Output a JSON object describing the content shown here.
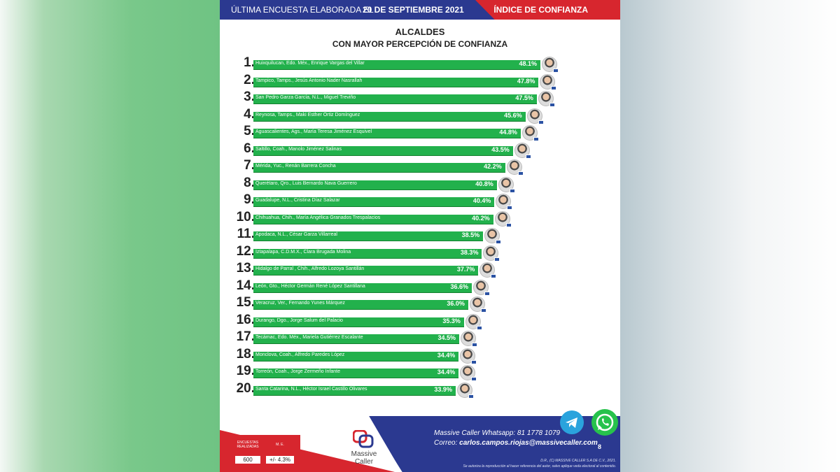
{
  "header": {
    "survey_label": "ÚLTIMA ENCUESTA ELABORADA EL",
    "survey_date": "20  DE SEPTIEMBRE 2021",
    "index_label": "ÍNDICE DE CONFIANZA"
  },
  "chart_data": {
    "type": "bar",
    "title": "ALCALDES",
    "subtitle": "CON MAYOR PERCEPCIÓN DE CONFIANZA",
    "orientation": "horizontal",
    "categories": [
      "Huixquilucan, Edo. Méx., Enrique Vargas del Villar",
      "Tampico, Tamps., Jesús Antonio Nader Nasrallah",
      "San Pedro Garza García, N.L., Miguel Treviño",
      "Reynosa, Tamps., Maki Esther Ortiz Domínguez",
      "Aguascalientes, Ags., María Teresa Jiménez Esquivel",
      "Saltillo, Coah., Manolo Jiménez Salinas",
      "Mérida, Yuc., Renán Barrera Concha",
      "Querétaro, Qro., Luis Bernardo Nava Guerrero",
      "Guadalupe, N.L., Cristina Díaz Salazar",
      "Chihuahua, Chih., María Angélica Granados Trespalacios",
      "Apodaca, N.L., César Garza Villarreal",
      "Iztapalapa, C.D.M.X., Clara Brugada Molina",
      "Hidalgo de Parral , Chih., Alfredo Lozoya Santillán",
      "León, Gto., Héctor Germán René López Santillana",
      "Veracruz, Ver., Fernando Yunes Márquez",
      "Durango, Dgo., Jorge Salum del Palacio",
      "Tecámac, Edo. Méx., Mariela Gutiérrez Escalante",
      "Monclova, Coah., Alfredo Paredes López",
      "Torreón, Coah., Jorge Zermeño Infante",
      "Santa Catarina, N.L., Héctor Israel Castillo Olivares"
    ],
    "ranks": [
      "1.",
      "2.",
      "3.",
      "4.",
      "5.",
      "6.",
      "7.",
      "8.",
      "9.",
      "10.",
      "11.",
      "12.",
      "13.",
      "14.",
      "15.",
      "16.",
      "17.",
      "18.",
      "19.",
      "20."
    ],
    "values": [
      48.1,
      47.8,
      47.5,
      45.6,
      44.8,
      43.5,
      42.2,
      40.8,
      40.4,
      40.2,
      38.5,
      38.3,
      37.7,
      36.6,
      36.0,
      35.3,
      34.5,
      34.4,
      34.4,
      33.9
    ],
    "value_labels": [
      "48.1%",
      "47.8%",
      "47.5%",
      "45.6%",
      "44.8%",
      "43.5%",
      "42.2%",
      "40.8%",
      "40.4%",
      "40.2%",
      "38.5%",
      "38.3%",
      "37.7%",
      "36.6%",
      "36.0%",
      "35.3%",
      "34.5%",
      "34.4%",
      "34.4%",
      "33.9%"
    ],
    "bar_color": "#22b14c",
    "grid": false,
    "legend": "none"
  },
  "footer": {
    "stats": {
      "surveys_label": "ENCUESTAS REALIZADAS",
      "surveys_value": "600",
      "moe_label": "M. E.",
      "moe_value": "+/- 4.3%"
    },
    "logo_text": "Massive Caller",
    "whatsapp": "Massive Caller Whatsapp:  81 1778 1079",
    "email_label": "Correo:",
    "email": "carlos.campos.riojas@massivecaller.com",
    "page_number": "8",
    "legal_line1": "D.R., (C) MASSIVE CALLER S.A DE C.V., 2021.",
    "legal_line2": "Se autoriza la reproducción al hacer referencia del autor, salvo aplique veda electoral al contenido."
  },
  "colors": {
    "blue": "#2b3990",
    "red": "#d7262e",
    "green": "#22b14c",
    "telegram": "#2aa3dd",
    "whatsapp": "#27c24c"
  }
}
